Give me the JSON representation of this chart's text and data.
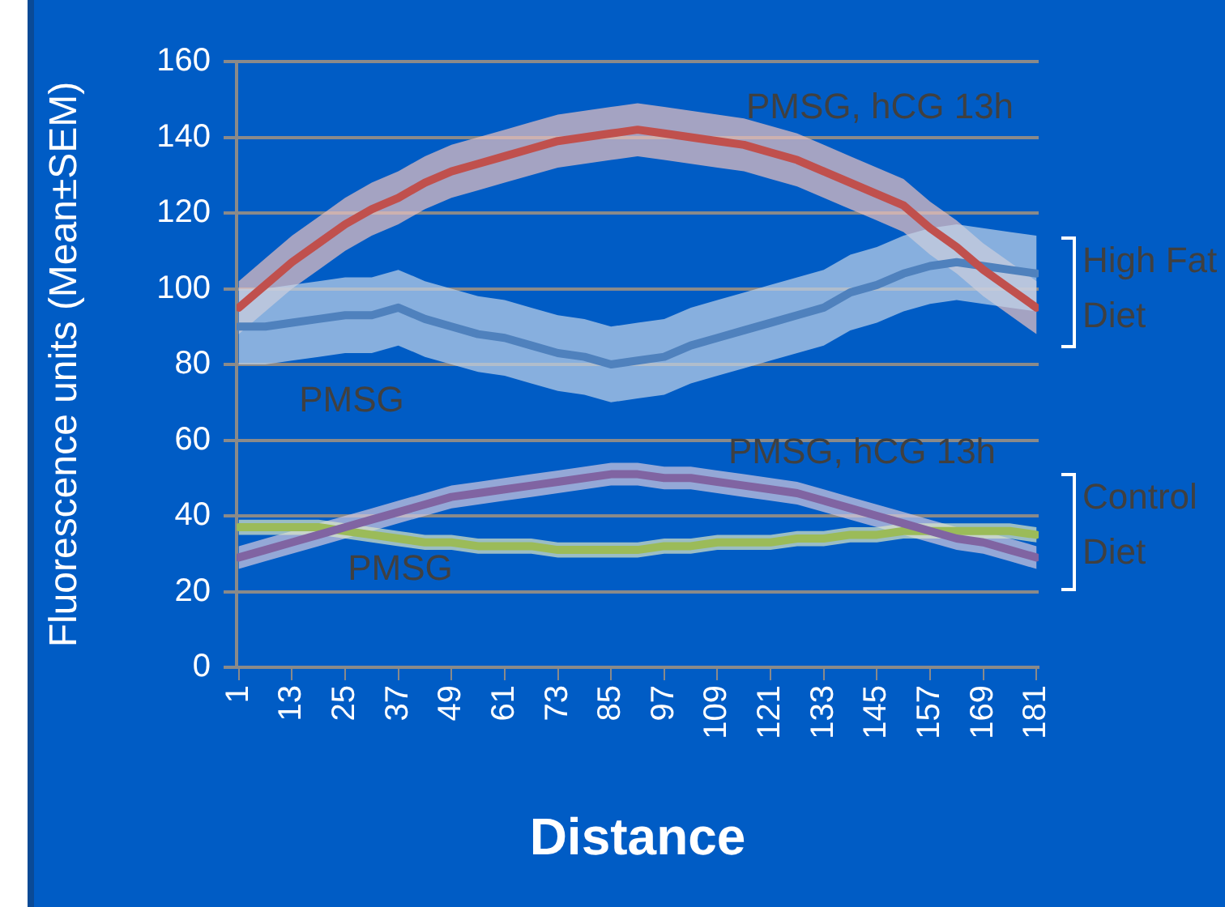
{
  "chart_data": {
    "type": "line",
    "xlabel": "Distance",
    "ylabel": "Fluorescence units (Mean±SEM)",
    "x": [
      1,
      7,
      13,
      19,
      25,
      31,
      37,
      43,
      49,
      55,
      61,
      67,
      73,
      79,
      85,
      91,
      97,
      103,
      109,
      115,
      121,
      127,
      133,
      139,
      145,
      151,
      157,
      163,
      169,
      175,
      181
    ],
    "xlim": [
      0.5,
      181.5
    ],
    "xticks": [
      1,
      13,
      25,
      37,
      49,
      61,
      73,
      85,
      97,
      109,
      121,
      133,
      145,
      157,
      169,
      181
    ],
    "ylim": [
      0,
      160
    ],
    "yticks": [
      0,
      20,
      40,
      60,
      80,
      100,
      120,
      140,
      160
    ],
    "grid": "y",
    "legend": false,
    "marker": "none",
    "annotations": [
      "High Fat Diet",
      "Control Diet"
    ],
    "series": [
      {
        "name": "PMSG, hCG 13h",
        "color": "#c0504d",
        "values": [
          95,
          101,
          107,
          112,
          117,
          121,
          124,
          128,
          131,
          133,
          135,
          137,
          139,
          140,
          141,
          142,
          141,
          140,
          139,
          138,
          136,
          134,
          131,
          128,
          125,
          122,
          116,
          111,
          105,
          100,
          95
        ],
        "lower": [
          88,
          94,
          100,
          105,
          110,
          114,
          117,
          121,
          124,
          126,
          128,
          130,
          132,
          133,
          134,
          135,
          134,
          133,
          132,
          131,
          129,
          127,
          124,
          121,
          118,
          115,
          109,
          104,
          98,
          93,
          88
        ],
        "upper": [
          102,
          108,
          114,
          119,
          124,
          128,
          131,
          135,
          138,
          140,
          142,
          144,
          146,
          147,
          148,
          149,
          148,
          147,
          146,
          145,
          143,
          141,
          138,
          135,
          132,
          129,
          123,
          118,
          112,
          107,
          102
        ]
      },
      {
        "name": "PMSG",
        "color": "#4f81bd",
        "values": [
          90,
          90,
          91,
          92,
          93,
          93,
          95,
          92,
          90,
          88,
          87,
          85,
          83,
          82,
          80,
          81,
          82,
          85,
          87,
          89,
          91,
          93,
          95,
          99,
          101,
          104,
          106,
          107,
          106,
          105,
          104
        ],
        "lower": [
          80,
          80,
          81,
          82,
          83,
          83,
          85,
          82,
          80,
          78,
          77,
          75,
          73,
          72,
          70,
          71,
          72,
          75,
          77,
          79,
          81,
          83,
          85,
          89,
          91,
          94,
          96,
          97,
          96,
          95,
          94
        ],
        "upper": [
          100,
          100,
          101,
          102,
          103,
          103,
          105,
          102,
          100,
          98,
          97,
          95,
          93,
          92,
          90,
          91,
          92,
          95,
          97,
          99,
          101,
          103,
          105,
          109,
          111,
          114,
          116,
          117,
          116,
          115,
          114
        ]
      },
      {
        "name": "PMSG, hCG 13h",
        "color": "#8064a2",
        "values": [
          29,
          31,
          33,
          35,
          37,
          39,
          41,
          43,
          45,
          46,
          47,
          48,
          49,
          50,
          51,
          51,
          50,
          50,
          49,
          48,
          47,
          46,
          44,
          42,
          40,
          38,
          36,
          34,
          33,
          31,
          29
        ],
        "lower": [
          26,
          28,
          30,
          32,
          34,
          36,
          38,
          40,
          42,
          43,
          44,
          45,
          46,
          47,
          48,
          48,
          47,
          47,
          46,
          45,
          44,
          43,
          41,
          39,
          37,
          35,
          33,
          31,
          30,
          28,
          26
        ],
        "upper": [
          32,
          34,
          36,
          38,
          40,
          42,
          44,
          46,
          48,
          49,
          50,
          51,
          52,
          53,
          54,
          54,
          53,
          53,
          52,
          51,
          50,
          49,
          47,
          45,
          43,
          41,
          39,
          37,
          36,
          34,
          32
        ]
      },
      {
        "name": "PMSG",
        "color": "#9bbb59",
        "values": [
          37,
          37,
          37,
          37,
          36,
          35,
          34,
          33,
          33,
          32,
          32,
          32,
          31,
          31,
          31,
          31,
          32,
          32,
          33,
          33,
          33,
          34,
          34,
          35,
          35,
          36,
          36,
          36,
          36,
          36,
          35
        ],
        "lower": [
          35,
          35,
          35,
          35,
          34,
          33,
          32,
          31,
          31,
          30,
          30,
          30,
          29,
          29,
          29,
          29,
          30,
          30,
          31,
          31,
          31,
          32,
          32,
          33,
          33,
          34,
          34,
          34,
          34,
          34,
          33
        ],
        "upper": [
          39,
          39,
          39,
          39,
          38,
          37,
          36,
          35,
          35,
          34,
          34,
          34,
          33,
          33,
          33,
          33,
          34,
          34,
          35,
          35,
          35,
          36,
          36,
          37,
          37,
          38,
          38,
          38,
          38,
          38,
          37
        ]
      }
    ]
  }
}
